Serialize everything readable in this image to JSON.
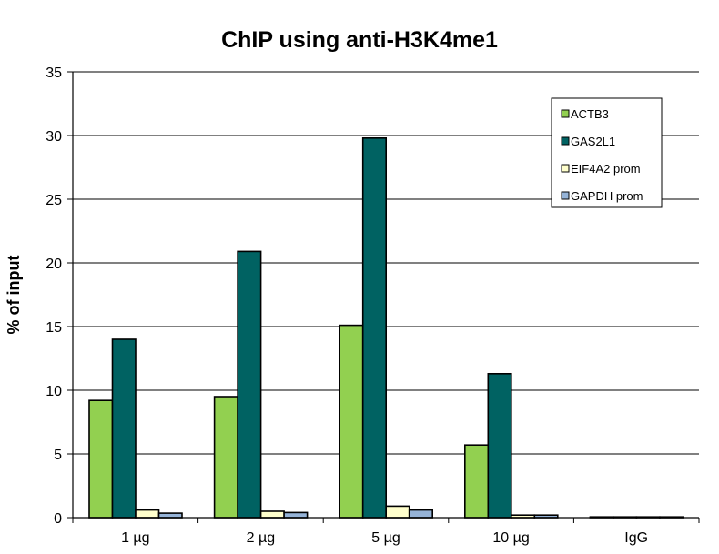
{
  "chart_data": {
    "type": "bar",
    "title": "ChIP using anti-H3K4me1",
    "xlabel": "",
    "ylabel": "% of input",
    "ylim": [
      0,
      35
    ],
    "yticks": [
      0,
      5,
      10,
      15,
      20,
      25,
      30,
      35
    ],
    "grid": true,
    "legend_position": "top-right",
    "categories": [
      "1 µg",
      "2 µg",
      "5 µg",
      "10 µg",
      "IgG"
    ],
    "series": [
      {
        "name": "ACTB3",
        "color": "#92d050",
        "values": [
          9.2,
          9.5,
          15.1,
          5.7,
          0.02
        ]
      },
      {
        "name": "GAS2L1",
        "color": "#006262",
        "values": [
          14.0,
          20.9,
          29.8,
          11.3,
          0.03
        ]
      },
      {
        "name": "EIF4A2 prom",
        "color": "#ffffcc",
        "values": [
          0.6,
          0.5,
          0.9,
          0.2,
          0.01
        ]
      },
      {
        "name": "GAPDH prom",
        "color": "#95b3d7",
        "values": [
          0.35,
          0.4,
          0.6,
          0.2,
          0.05
        ]
      }
    ]
  }
}
